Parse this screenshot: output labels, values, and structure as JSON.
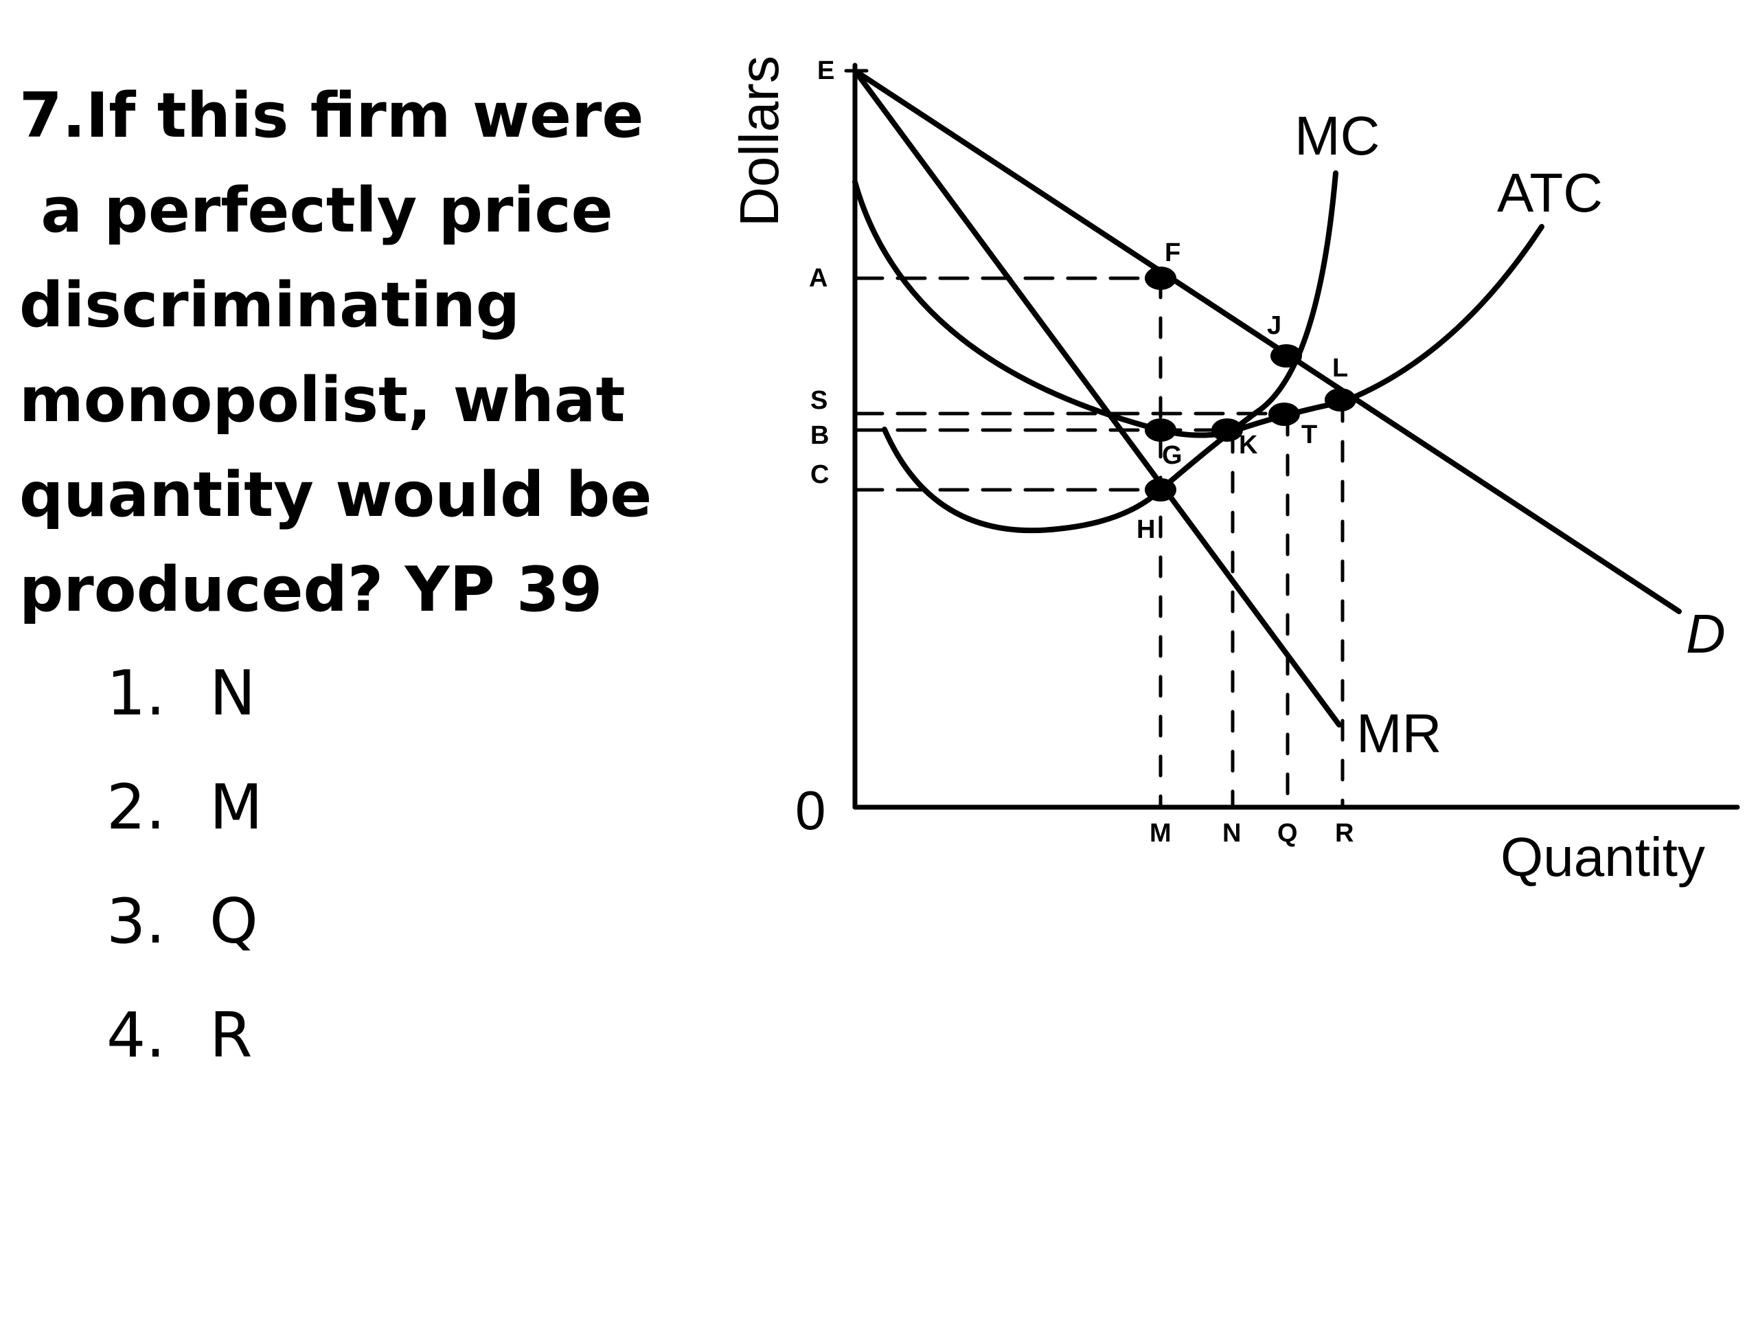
{
  "question": {
    "lines": [
      "7.If this firm were",
      " a perfectly price",
      "discriminating",
      "monopolist, what",
      "quantity would be",
      "produced? YP 39"
    ]
  },
  "options": [
    {
      "number": "1.",
      "label": "N"
    },
    {
      "number": "2.",
      "label": "M"
    },
    {
      "number": "3.",
      "label": "Q"
    },
    {
      "number": "4.",
      "label": "R"
    }
  ],
  "diagram": {
    "y_axis_label": "Dollars",
    "x_axis_label": "Quantity",
    "origin_label": "0",
    "price_labels": {
      "E": "E",
      "A": "A",
      "S": "S",
      "B": "B",
      "C": "C"
    },
    "quantity_labels": {
      "M": "M",
      "N": "N",
      "Q": "Q",
      "R": "R"
    },
    "point_labels": {
      "F": "F",
      "J": "J",
      "L": "L",
      "G": "G",
      "K": "K",
      "T": "T",
      "H": "H"
    },
    "curve_labels": {
      "MC": "MC",
      "ATC": "ATC",
      "D": "D",
      "MR": "MR"
    },
    "colors": {
      "ink": "#000000",
      "background": "#ffffff"
    }
  }
}
